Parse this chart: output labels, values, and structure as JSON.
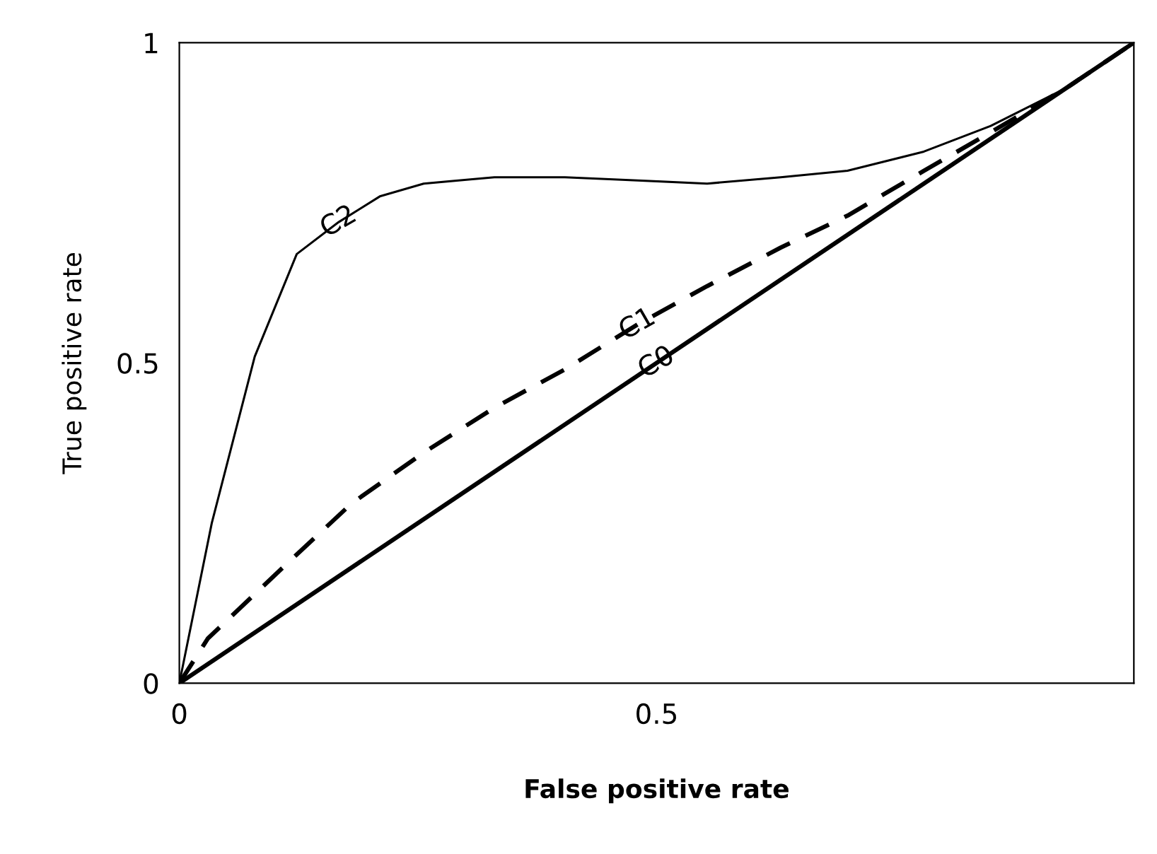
{
  "chart_data": {
    "type": "line",
    "xlabel": "False positive rate",
    "ylabel": "True positive rate",
    "xlim": [
      0,
      1
    ],
    "ylim": [
      0,
      1
    ],
    "xticks": [
      0,
      0.5
    ],
    "yticks": [
      0,
      0.5,
      1
    ],
    "grid": false,
    "legend": false,
    "marker": "none",
    "series": [
      {
        "color": "#000000",
        "line_style": "solid",
        "x": [
          0,
          1
        ],
        "values": [
          0,
          1
        ]
      },
      {
        "color": "#000000",
        "line_style": "dashed",
        "x": [
          0,
          0.03,
          0.108,
          0.18,
          0.256,
          0.33,
          0.404,
          0.48,
          0.553,
          0.63,
          0.7,
          0.78,
          0.85,
          0.93,
          1
        ],
        "values": [
          0,
          0.07,
          0.18,
          0.28,
          0.36,
          0.43,
          0.49,
          0.56,
          0.62,
          0.68,
          0.73,
          0.8,
          0.86,
          0.93,
          1
        ]
      },
      {
        "color": "#000000",
        "line_style": "solid",
        "x": [
          0,
          0.034,
          0.079,
          0.123,
          0.167,
          0.21,
          0.256,
          0.33,
          0.404,
          0.48,
          0.553,
          0.63,
          0.7,
          0.78,
          0.85,
          0.93,
          1
        ],
        "values": [
          0,
          0.25,
          0.51,
          0.67,
          0.72,
          0.76,
          0.78,
          0.79,
          0.79,
          0.785,
          0.78,
          0.79,
          0.8,
          0.83,
          0.87,
          0.93,
          1
        ]
      }
    ],
    "annotations": [
      {
        "text": "C0",
        "x": 0.5,
        "y": 0.5
      },
      {
        "text": "C1",
        "x": 0.48,
        "y": 0.56
      },
      {
        "text": "C2",
        "x": 0.167,
        "y": 0.72
      }
    ]
  }
}
